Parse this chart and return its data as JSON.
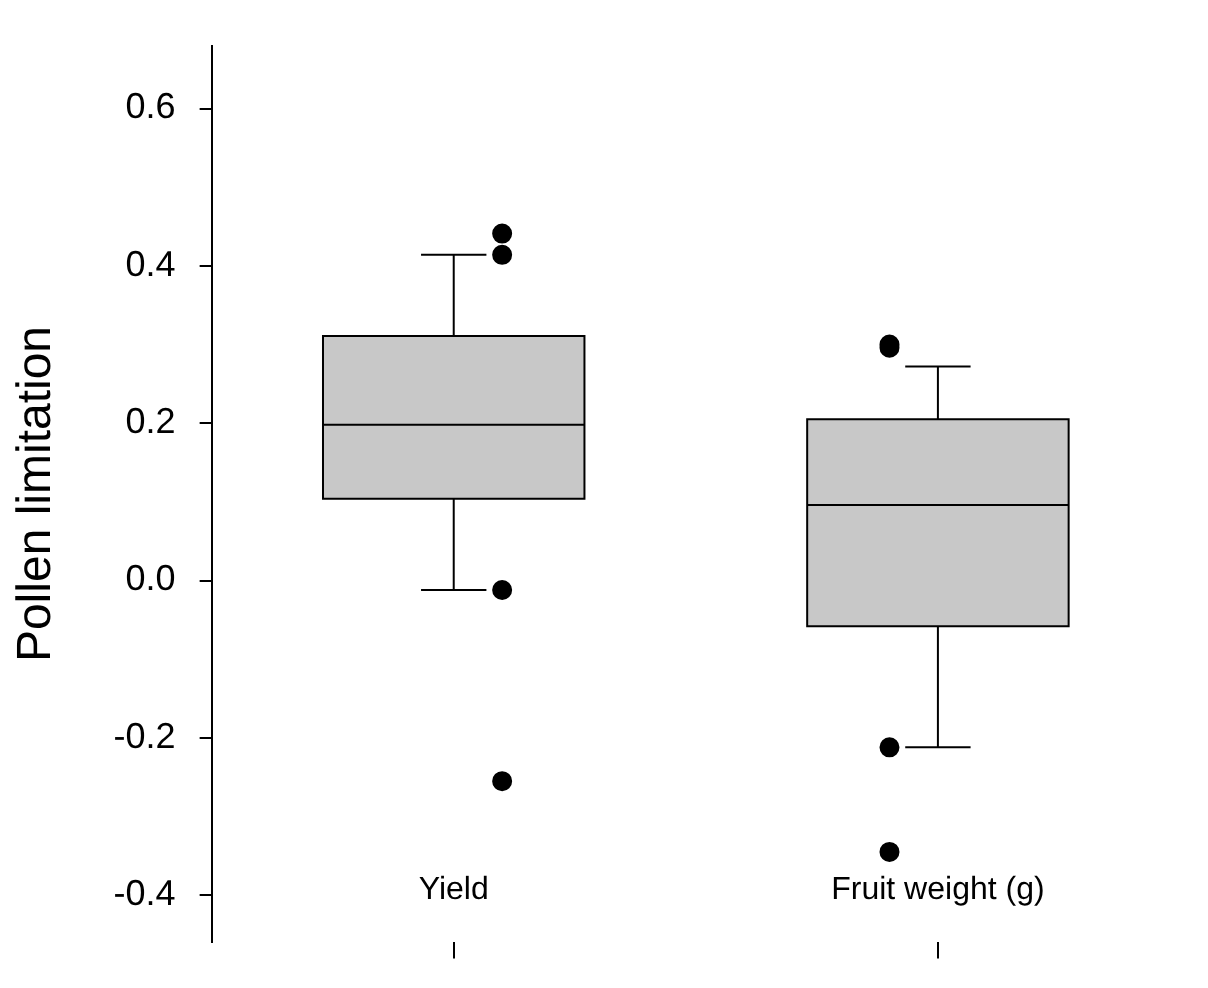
{
  "chart_data": {
    "type": "box",
    "ylabel": "Pollen limitation",
    "categories": [
      "Yield",
      "Fruit weight (g)"
    ],
    "color": "#c8c8c8",
    "boxes": [
      {
        "low": -0.012,
        "q1": 0.104,
        "median": 0.198,
        "q3": 0.311,
        "high": 0.414,
        "outliers": [
          0.441,
          0.414,
          -0.012,
          -0.255
        ]
      },
      {
        "low": -0.212,
        "q1": -0.058,
        "median": 0.096,
        "q3": 0.205,
        "high": 0.272,
        "outliers": [
          0.296,
          0.3,
          -0.212,
          -0.345
        ]
      }
    ],
    "ylim": [
      -0.46,
      0.68
    ],
    "yticks": [
      {
        "value": -0.4,
        "label": "-0.4"
      },
      {
        "value": -0.2,
        "label": "-0.2"
      },
      {
        "value": 0,
        "label": "0.0"
      },
      {
        "value": 0.2,
        "label": "0.2"
      },
      {
        "value": 0.4,
        "label": "0.4"
      },
      {
        "value": 0.6,
        "label": "0.6"
      }
    ],
    "grid": false,
    "legend": false
  }
}
